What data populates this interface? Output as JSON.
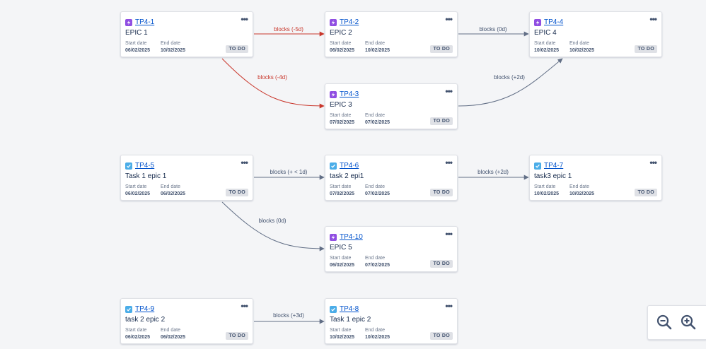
{
  "cards": [
    {
      "id": "tp4-1",
      "key": "TP4-1",
      "type": "epic",
      "summary": "EPIC 1",
      "start_label": "Start date",
      "start": "06/02/2025",
      "end_label": "End date",
      "end": "10/02/2025",
      "status": "TO DO"
    },
    {
      "id": "tp4-2",
      "key": "TP4-2",
      "type": "epic",
      "summary": "EPIC 2",
      "start_label": "Start date",
      "start": "06/02/2025",
      "end_label": "End date",
      "end": "10/02/2025",
      "status": "TO DO"
    },
    {
      "id": "tp4-4",
      "key": "TP4-4",
      "type": "epic",
      "summary": "EPIC 4",
      "start_label": "Start date",
      "start": "10/02/2025",
      "end_label": "End date",
      "end": "10/02/2025",
      "status": "TO DO"
    },
    {
      "id": "tp4-3",
      "key": "TP4-3",
      "type": "epic",
      "summary": "EPIC 3",
      "start_label": "Start date",
      "start": "07/02/2025",
      "end_label": "End date",
      "end": "07/02/2025",
      "status": "TO DO"
    },
    {
      "id": "tp4-5",
      "key": "TP4-5",
      "type": "task",
      "summary": "Task 1 epic 1",
      "start_label": "Start date",
      "start": "06/02/2025",
      "end_label": "End date",
      "end": "06/02/2025",
      "status": "TO DO"
    },
    {
      "id": "tp4-6",
      "key": "TP4-6",
      "type": "task",
      "summary": "task 2 epi1",
      "start_label": "Start date",
      "start": "07/02/2025",
      "end_label": "End date",
      "end": "07/02/2025",
      "status": "TO DO"
    },
    {
      "id": "tp4-7",
      "key": "TP4-7",
      "type": "task",
      "summary": "task3 epic 1",
      "start_label": "Start date",
      "start": "10/02/2025",
      "end_label": "End date",
      "end": "10/02/2025",
      "status": "TO DO"
    },
    {
      "id": "tp4-10",
      "key": "TP4-10",
      "type": "epic",
      "summary": "EPIC 5",
      "start_label": "Start date",
      "start": "06/02/2025",
      "end_label": "End date",
      "end": "07/02/2025",
      "status": "TO DO"
    },
    {
      "id": "tp4-9",
      "key": "TP4-9",
      "type": "task",
      "summary": "task 2 epic 2",
      "start_label": "Start date",
      "start": "06/02/2025",
      "end_label": "End date",
      "end": "06/02/2025",
      "status": "TO DO"
    },
    {
      "id": "tp4-8",
      "key": "TP4-8",
      "type": "task",
      "summary": "Task 1 epic 2",
      "start_label": "Start date",
      "start": "10/02/2025",
      "end_label": "End date",
      "end": "10/02/2025",
      "status": "TO DO"
    }
  ],
  "edges": [
    {
      "from": "TP4-1",
      "to": "TP4-2",
      "label": "blocks (-5d)",
      "conflict": true
    },
    {
      "from": "TP4-1",
      "to": "TP4-3",
      "label": "blocks (-4d)",
      "conflict": true
    },
    {
      "from": "TP4-2",
      "to": "TP4-4",
      "label": "blocks (0d)",
      "conflict": false
    },
    {
      "from": "TP4-3",
      "to": "TP4-4",
      "label": "blocks (+2d)",
      "conflict": false
    },
    {
      "from": "TP4-5",
      "to": "TP4-6",
      "label": "blocks (+ < 1d)",
      "conflict": false
    },
    {
      "from": "TP4-6",
      "to": "TP4-7",
      "label": "blocks (+2d)",
      "conflict": false
    },
    {
      "from": "TP4-5",
      "to": "TP4-10",
      "label": "blocks (0d)",
      "conflict": false
    },
    {
      "from": "TP4-9",
      "to": "TP4-8",
      "label": "blocks (+3d)",
      "conflict": false
    }
  ],
  "zoom": {
    "out_icon": "zoom-out-icon",
    "in_icon": "zoom-in-icon"
  },
  "colors": {
    "conflict": "#c9372c",
    "normal": "#626f86",
    "epic": "#904ee2",
    "task": "#4bade8",
    "link": "#0052cc"
  }
}
